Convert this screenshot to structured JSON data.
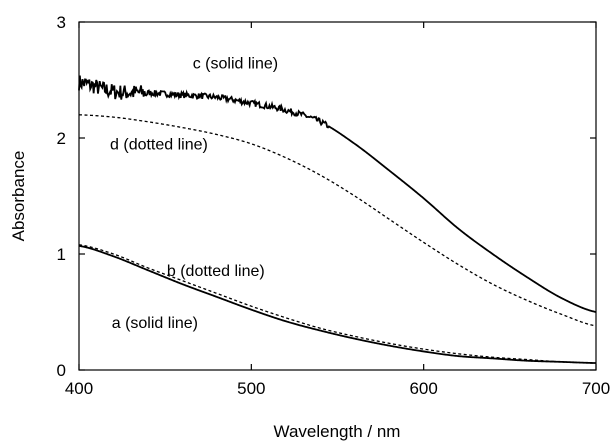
{
  "chart_data": {
    "type": "line",
    "xlabel": "Wavelength / nm",
    "ylabel": "Absorbance",
    "xlim": [
      400,
      700
    ],
    "ylim": [
      0,
      3
    ],
    "xticks": [
      "400",
      "500",
      "600",
      "700"
    ],
    "yticks": [
      "0",
      "1",
      "2",
      "3"
    ],
    "grid": false,
    "series": [
      {
        "name": "c (solid line)",
        "style": "solid",
        "color": "#000000",
        "noisy": true,
        "x": [
          400,
          420,
          440,
          460,
          480,
          500,
          520,
          540,
          560,
          580,
          600,
          620,
          640,
          660,
          680,
          700
        ],
        "y": [
          2.48,
          2.4,
          2.39,
          2.37,
          2.35,
          2.3,
          2.24,
          2.14,
          1.95,
          1.72,
          1.48,
          1.22,
          1.0,
          0.8,
          0.62,
          0.5
        ]
      },
      {
        "name": "d (dotted line)",
        "style": "dotted",
        "color": "#000000",
        "x": [
          400,
          420,
          440,
          460,
          480,
          500,
          520,
          540,
          560,
          580,
          600,
          620,
          640,
          660,
          680,
          700
        ],
        "y": [
          2.2,
          2.18,
          2.14,
          2.09,
          2.03,
          1.95,
          1.83,
          1.68,
          1.5,
          1.3,
          1.1,
          0.91,
          0.74,
          0.6,
          0.48,
          0.38
        ]
      },
      {
        "name": "b (dotted line)",
        "style": "dotted",
        "color": "#000000",
        "x": [
          400,
          420,
          440,
          460,
          480,
          500,
          520,
          540,
          560,
          580,
          600,
          620,
          640,
          660,
          680,
          700
        ],
        "y": [
          1.08,
          1.0,
          0.88,
          0.77,
          0.66,
          0.55,
          0.45,
          0.36,
          0.29,
          0.23,
          0.18,
          0.14,
          0.11,
          0.09,
          0.07,
          0.06
        ]
      },
      {
        "name": "a (solid line)",
        "style": "solid",
        "color": "#000000",
        "x": [
          400,
          420,
          440,
          460,
          480,
          500,
          520,
          540,
          560,
          580,
          600,
          620,
          640,
          660,
          680,
          700
        ],
        "y": [
          1.07,
          0.98,
          0.86,
          0.74,
          0.63,
          0.52,
          0.42,
          0.34,
          0.27,
          0.21,
          0.16,
          0.12,
          0.1,
          0.08,
          0.07,
          0.06
        ]
      }
    ],
    "annotations": [
      {
        "text": "c (solid line)",
        "x": 466,
        "y": 2.6
      },
      {
        "text": "d (dotted line)",
        "x": 418,
        "y": 1.9
      },
      {
        "text": "b (dotted line)",
        "x": 451,
        "y": 0.81
      },
      {
        "text": "a (solid line)",
        "x": 419,
        "y": 0.36
      }
    ]
  }
}
